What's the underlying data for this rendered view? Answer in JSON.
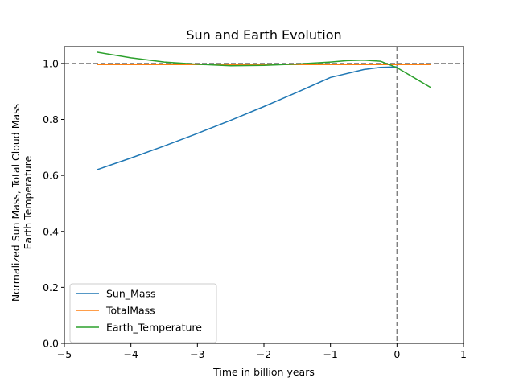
{
  "chart_data": {
    "type": "line",
    "title": "Sun and Earth Evolution",
    "xlabel": "Time in billion years",
    "ylabel_lines": [
      "Normalized Sun Mass, Total Cloud Mass",
      "Earth Temperature"
    ],
    "xlim": [
      -5,
      1
    ],
    "ylim": [
      0,
      1.06
    ],
    "xticks": [
      -5,
      -4,
      -3,
      -2,
      -1,
      0,
      1
    ],
    "xtick_labels": [
      "−5",
      "−4",
      "−3",
      "−2",
      "−1",
      "0",
      "1"
    ],
    "yticks": [
      0.0,
      0.2,
      0.4,
      0.6,
      0.8,
      1.0
    ],
    "ytick_labels": [
      "0.0",
      "0.2",
      "0.4",
      "0.6",
      "0.8",
      "1.0"
    ],
    "grid": false,
    "legend_position": "lower-left",
    "reference_lines": [
      {
        "orientation": "horizontal",
        "value": 1.0,
        "style": "dashed",
        "color": "#808080"
      },
      {
        "orientation": "vertical",
        "value": 0,
        "style": "dashed",
        "color": "#808080"
      }
    ],
    "series": [
      {
        "name": "Sun_Mass",
        "color": "#1f77b4",
        "x": [
          -4.5,
          -4.0,
          -3.5,
          -3.0,
          -2.5,
          -2.0,
          -1.5,
          -1.0,
          -0.5,
          -0.25,
          0.0
        ],
        "y": [
          0.621,
          0.662,
          0.705,
          0.75,
          0.797,
          0.846,
          0.897,
          0.95,
          0.978,
          0.986,
          0.988
        ]
      },
      {
        "name": "TotalMass",
        "color": "#ff7f0e",
        "x": [
          -4.5,
          0.5
        ],
        "y": [
          0.996,
          0.996
        ]
      },
      {
        "name": "Earth_Temperature",
        "color": "#2ca02c",
        "x": [
          -4.5,
          -4.0,
          -3.5,
          -3.0,
          -2.5,
          -2.0,
          -1.5,
          -1.0,
          -0.75,
          -0.5,
          -0.25,
          0.0,
          0.25,
          0.5
        ],
        "y": [
          1.04,
          1.02,
          1.005,
          0.997,
          0.992,
          0.993,
          0.998,
          1.005,
          1.01,
          1.012,
          1.008,
          0.985,
          0.95,
          0.915
        ]
      }
    ]
  }
}
